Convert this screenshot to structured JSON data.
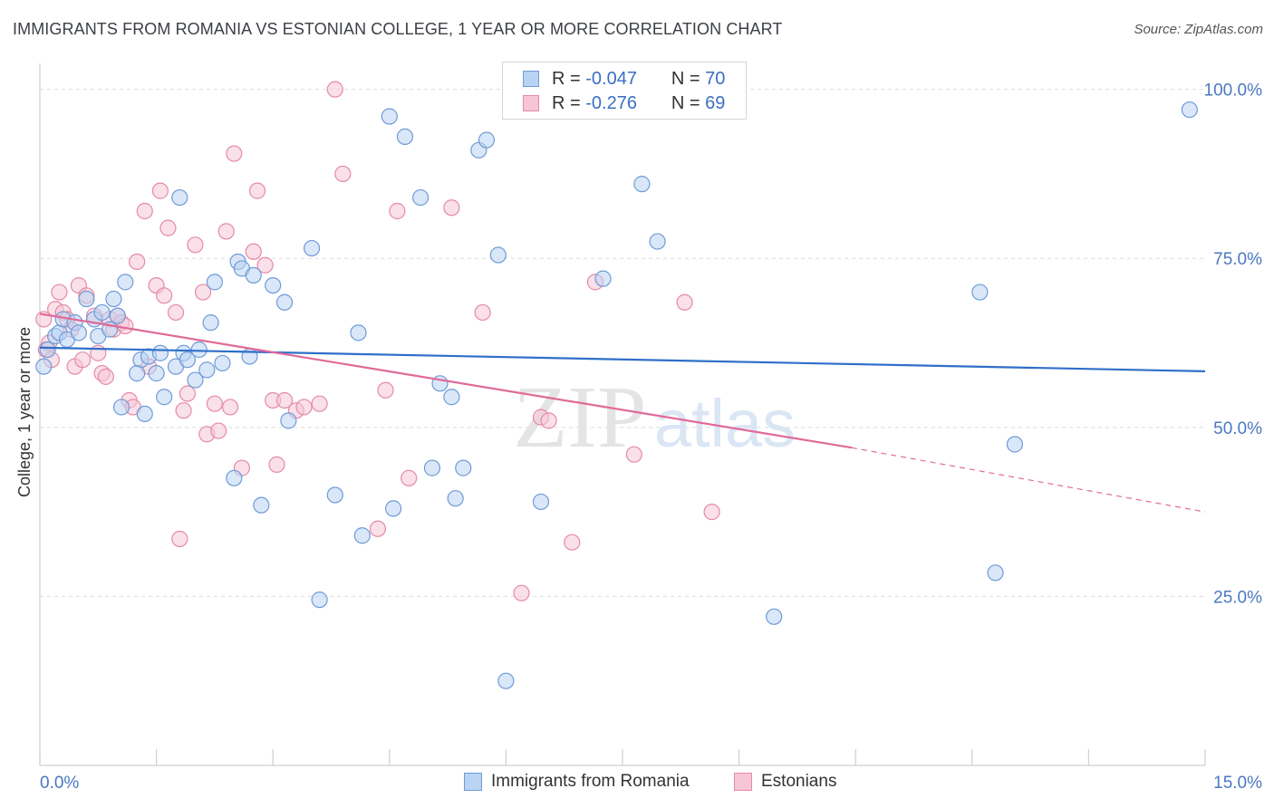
{
  "title": "IMMIGRANTS FROM ROMANIA VS ESTONIAN COLLEGE, 1 YEAR OR MORE CORRELATION CHART",
  "source": "Source: ZipAtlas.com",
  "watermark": {
    "zip": "ZIP",
    "atlas": "atlas"
  },
  "legend": {
    "rows": [
      {
        "r_label": "R =",
        "r_value": "-0.047",
        "n_label": "N =",
        "n_value": "70"
      },
      {
        "r_label": "R =",
        "r_value": "-0.276",
        "n_label": "N =",
        "n_value": "69"
      }
    ]
  },
  "bottom_legend": [
    "Immigrants from Romania",
    "Estonians"
  ],
  "colors": {
    "blue_fill": "#b9d3f2",
    "blue_stroke": "#6f9bd8",
    "blue_line": "#2f6fc9",
    "pink_fill": "#f6c6d6",
    "pink_stroke": "#e58aa8",
    "pink_line": "#e06a98",
    "tick_text": "#4a78c2",
    "grid": "#dcdcdc"
  },
  "chart_data": {
    "type": "scatter",
    "title": "IMMIGRANTS FROM ROMANIA VS ESTONIAN COLLEGE, 1 YEAR OR MORE CORRELATION CHART",
    "xlabel": "",
    "ylabel": "College, 1 year or more",
    "xlim": [
      0,
      15
    ],
    "ylim": [
      0,
      102.5
    ],
    "x_tick_labels": [
      "0.0%",
      "15.0%"
    ],
    "y_ticks": [
      25,
      50,
      75,
      100
    ],
    "y_tick_labels": [
      "25.0%",
      "50.0%",
      "75.0%",
      "100.0%"
    ],
    "grid": "horizontal dashed",
    "legend_position": "top-center",
    "series": [
      {
        "name": "Immigrants from Romania",
        "color": "#6f9bd8",
        "R": -0.047,
        "N": 70,
        "trend": {
          "x": [
            0,
            15
          ],
          "y": [
            61.8,
            58.3
          ],
          "style": "solid"
        },
        "points": [
          [
            0.05,
            59.0
          ],
          [
            0.1,
            61.5
          ],
          [
            0.2,
            63.5
          ],
          [
            0.25,
            64.0
          ],
          [
            0.3,
            66.0
          ],
          [
            0.35,
            63.0
          ],
          [
            0.45,
            65.5
          ],
          [
            0.5,
            64.0
          ],
          [
            0.6,
            69.0
          ],
          [
            0.7,
            66.0
          ],
          [
            0.75,
            63.5
          ],
          [
            0.8,
            67.0
          ],
          [
            0.9,
            64.5
          ],
          [
            1.0,
            66.5
          ],
          [
            0.95,
            69.0
          ],
          [
            1.1,
            71.5
          ],
          [
            1.3,
            60.0
          ],
          [
            1.25,
            58.0
          ],
          [
            1.4,
            60.5
          ],
          [
            1.55,
            61.0
          ],
          [
            1.5,
            58.0
          ],
          [
            1.6,
            54.5
          ],
          [
            1.75,
            59.0
          ],
          [
            1.85,
            61.0
          ],
          [
            1.9,
            60.0
          ],
          [
            2.0,
            57.0
          ],
          [
            2.05,
            61.5
          ],
          [
            2.15,
            58.5
          ],
          [
            2.2,
            65.5
          ],
          [
            2.25,
            71.5
          ],
          [
            2.35,
            59.5
          ],
          [
            2.5,
            42.5
          ],
          [
            2.55,
            74.5
          ],
          [
            2.6,
            73.5
          ],
          [
            2.7,
            60.5
          ],
          [
            2.75,
            72.5
          ],
          [
            2.85,
            38.5
          ],
          [
            3.0,
            71.0
          ],
          [
            3.15,
            68.5
          ],
          [
            3.2,
            51.0
          ],
          [
            3.5,
            76.5
          ],
          [
            3.6,
            24.5
          ],
          [
            3.8,
            40.0
          ],
          [
            4.1,
            64.0
          ],
          [
            4.15,
            34.0
          ],
          [
            4.5,
            96.0
          ],
          [
            4.55,
            38.0
          ],
          [
            4.7,
            93.0
          ],
          [
            4.9,
            84.0
          ],
          [
            5.05,
            44.0
          ],
          [
            5.15,
            56.5
          ],
          [
            5.3,
            54.5
          ],
          [
            5.35,
            39.5
          ],
          [
            5.45,
            44.0
          ],
          [
            5.65,
            91.0
          ],
          [
            5.75,
            92.5
          ],
          [
            5.9,
            75.5
          ],
          [
            6.0,
            12.5
          ],
          [
            6.45,
            39.0
          ],
          [
            7.25,
            72.0
          ],
          [
            7.75,
            86.0
          ],
          [
            7.95,
            77.5
          ],
          [
            1.8,
            84.0
          ],
          [
            1.05,
            53.0
          ],
          [
            1.35,
            52.0
          ],
          [
            9.45,
            22.0
          ],
          [
            12.1,
            70.0
          ],
          [
            12.3,
            28.5
          ],
          [
            12.55,
            47.5
          ],
          [
            14.8,
            97.0
          ]
        ]
      },
      {
        "name": "Estonians",
        "color": "#e58aa8",
        "R": -0.276,
        "N": 69,
        "trend": {
          "x": [
            0,
            10.45
          ],
          "y": [
            66.8,
            47.0
          ],
          "style": "solid",
          "dashed_extension": {
            "x": [
              10.45,
              15
            ],
            "y": [
              47.0,
              37.5
            ]
          }
        },
        "points": [
          [
            0.05,
            66.0
          ],
          [
            0.08,
            61.5
          ],
          [
            0.12,
            62.5
          ],
          [
            0.15,
            60.0
          ],
          [
            0.2,
            67.5
          ],
          [
            0.25,
            70.0
          ],
          [
            0.3,
            67.0
          ],
          [
            0.35,
            66.0
          ],
          [
            0.4,
            64.5
          ],
          [
            0.45,
            59.0
          ],
          [
            0.5,
            71.0
          ],
          [
            0.55,
            60.0
          ],
          [
            0.6,
            69.5
          ],
          [
            0.7,
            66.5
          ],
          [
            0.75,
            61.0
          ],
          [
            0.8,
            58.0
          ],
          [
            0.85,
            57.5
          ],
          [
            0.9,
            66.0
          ],
          [
            0.95,
            64.5
          ],
          [
            1.0,
            66.5
          ],
          [
            1.05,
            65.5
          ],
          [
            1.1,
            65.0
          ],
          [
            1.15,
            54.0
          ],
          [
            1.2,
            53.0
          ],
          [
            1.25,
            74.5
          ],
          [
            1.35,
            82.0
          ],
          [
            1.4,
            59.0
          ],
          [
            1.5,
            71.0
          ],
          [
            1.55,
            85.0
          ],
          [
            1.6,
            69.5
          ],
          [
            1.65,
            79.5
          ],
          [
            1.75,
            67.0
          ],
          [
            1.8,
            33.5
          ],
          [
            1.85,
            52.5
          ],
          [
            1.9,
            55.0
          ],
          [
            2.0,
            77.0
          ],
          [
            2.1,
            70.0
          ],
          [
            2.15,
            49.0
          ],
          [
            2.25,
            53.5
          ],
          [
            2.3,
            49.5
          ],
          [
            2.4,
            79.0
          ],
          [
            2.45,
            53.0
          ],
          [
            2.5,
            90.5
          ],
          [
            2.6,
            44.0
          ],
          [
            2.75,
            76.0
          ],
          [
            2.8,
            85.0
          ],
          [
            2.9,
            74.0
          ],
          [
            3.0,
            54.0
          ],
          [
            3.05,
            44.5
          ],
          [
            3.15,
            54.0
          ],
          [
            3.3,
            52.5
          ],
          [
            3.4,
            53.0
          ],
          [
            3.6,
            53.5
          ],
          [
            3.8,
            100.0
          ],
          [
            3.9,
            87.5
          ],
          [
            4.35,
            35.0
          ],
          [
            4.45,
            55.5
          ],
          [
            4.6,
            82.0
          ],
          [
            4.75,
            42.5
          ],
          [
            5.3,
            82.5
          ],
          [
            5.7,
            67.0
          ],
          [
            6.2,
            25.5
          ],
          [
            6.45,
            51.5
          ],
          [
            6.55,
            51.0
          ],
          [
            6.85,
            33.0
          ],
          [
            7.15,
            71.5
          ],
          [
            7.65,
            46.0
          ],
          [
            8.3,
            68.5
          ],
          [
            8.65,
            37.5
          ]
        ]
      }
    ]
  }
}
